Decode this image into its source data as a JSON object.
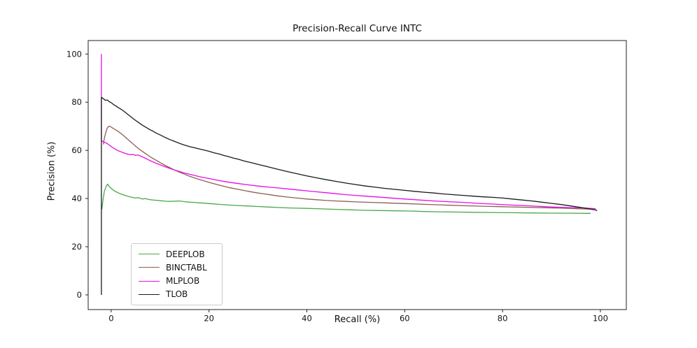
{
  "chart_data": {
    "type": "line",
    "title": "Precision-Recall Curve INTC",
    "xlabel": "Recall (%)",
    "ylabel": "Precision (%)",
    "xlim": [
      -4.7,
      105.3
    ],
    "ylim": [
      -6.1,
      105.6
    ],
    "xticks": [
      0,
      20,
      40,
      60,
      80,
      100
    ],
    "yticks": [
      0,
      20,
      40,
      60,
      80,
      100
    ],
    "grid": false,
    "legend_position": "lower-left",
    "axis_color": "#222222",
    "text_color": "#111111",
    "series": [
      {
        "name": "DEEPLOB",
        "color": "#48a848",
        "points": [
          [
            -1.9,
            35.5
          ],
          [
            -1.7,
            39
          ],
          [
            -1.4,
            43
          ],
          [
            -1.0,
            45.2
          ],
          [
            -0.7,
            46
          ],
          [
            -0.4,
            45
          ],
          [
            0,
            44.2
          ],
          [
            0.4,
            43.6
          ],
          [
            0.8,
            43
          ],
          [
            1.2,
            42.6
          ],
          [
            1.6,
            42.2
          ],
          [
            2,
            41.9
          ],
          [
            2.5,
            41.5
          ],
          [
            3,
            41.2
          ],
          [
            3.5,
            40.9
          ],
          [
            4,
            40.6
          ],
          [
            4.5,
            40.4
          ],
          [
            5,
            40.2
          ],
          [
            5.5,
            40.4
          ],
          [
            6,
            40
          ],
          [
            6.5,
            39.8
          ],
          [
            7,
            40
          ],
          [
            7.5,
            39.7
          ],
          [
            8,
            39.5
          ],
          [
            9,
            39.3
          ],
          [
            10,
            39.1
          ],
          [
            11,
            38.9
          ],
          [
            12,
            38.8
          ],
          [
            13,
            38.9
          ],
          [
            14,
            39
          ],
          [
            15,
            38.7
          ],
          [
            16,
            38.5
          ],
          [
            17,
            38.4
          ],
          [
            18,
            38.2
          ],
          [
            19,
            38.1
          ],
          [
            20,
            37.9
          ],
          [
            22,
            37.6
          ],
          [
            24,
            37.3
          ],
          [
            26,
            37.1
          ],
          [
            28,
            36.9
          ],
          [
            30,
            36.7
          ],
          [
            32,
            36.5
          ],
          [
            34,
            36.3
          ],
          [
            36,
            36.1
          ],
          [
            38,
            36
          ],
          [
            40,
            35.9
          ],
          [
            43,
            35.7
          ],
          [
            46,
            35.5
          ],
          [
            49,
            35.3
          ],
          [
            52,
            35.1
          ],
          [
            55,
            35
          ],
          [
            58,
            34.9
          ],
          [
            61,
            34.8
          ],
          [
            64,
            34.6
          ],
          [
            67,
            34.5
          ],
          [
            70,
            34.4
          ],
          [
            74,
            34.3
          ],
          [
            78,
            34.2
          ],
          [
            82,
            34.1
          ],
          [
            86,
            34
          ],
          [
            90,
            33.95
          ],
          [
            94,
            33.9
          ],
          [
            98,
            33.85
          ]
        ]
      },
      {
        "name": "BINCTABL",
        "color": "#8c5f52",
        "points": [
          [
            -1.6,
            62.5
          ],
          [
            -1.4,
            65
          ],
          [
            -1.1,
            67.5
          ],
          [
            -0.8,
            69.3
          ],
          [
            -0.5,
            70
          ],
          [
            -0.2,
            69.9
          ],
          [
            0.2,
            69.4
          ],
          [
            0.6,
            68.9
          ],
          [
            1,
            68.4
          ],
          [
            1.5,
            67.8
          ],
          [
            2,
            67
          ],
          [
            2.5,
            66.2
          ],
          [
            3,
            65.3
          ],
          [
            3.5,
            64.4
          ],
          [
            4,
            63.5
          ],
          [
            4.5,
            62.6
          ],
          [
            5,
            61.7
          ],
          [
            5.5,
            60.9
          ],
          [
            6,
            60.1
          ],
          [
            6.5,
            59.4
          ],
          [
            7,
            58.7
          ],
          [
            7.5,
            58
          ],
          [
            8,
            57.3
          ],
          [
            9,
            56.1
          ],
          [
            10,
            54.9
          ],
          [
            11,
            53.8
          ],
          [
            12,
            52.8
          ],
          [
            13,
            51.8
          ],
          [
            14,
            50.9
          ],
          [
            15,
            50.1
          ],
          [
            16,
            49.3
          ],
          [
            17,
            48.6
          ],
          [
            18,
            47.9
          ],
          [
            19,
            47.3
          ],
          [
            20,
            46.7
          ],
          [
            22,
            45.6
          ],
          [
            24,
            44.6
          ],
          [
            26,
            43.8
          ],
          [
            28,
            43
          ],
          [
            30,
            42.3
          ],
          [
            32,
            41.7
          ],
          [
            34,
            41.1
          ],
          [
            36,
            40.6
          ],
          [
            38,
            40.2
          ],
          [
            40,
            39.8
          ],
          [
            42,
            39.5
          ],
          [
            44,
            39.2
          ],
          [
            46,
            39
          ],
          [
            48,
            38.8
          ],
          [
            50,
            38.6
          ],
          [
            53,
            38.4
          ],
          [
            56,
            38.2
          ],
          [
            60,
            37.9
          ],
          [
            64,
            37.6
          ],
          [
            68,
            37.3
          ],
          [
            72,
            37
          ],
          [
            76,
            36.8
          ],
          [
            80,
            36.6
          ],
          [
            84,
            36.4
          ],
          [
            88,
            36.2
          ],
          [
            92,
            36
          ],
          [
            95,
            35.8
          ],
          [
            98,
            35.6
          ]
        ]
      },
      {
        "name": "MLPLOB",
        "color": "#e50ee5",
        "points": [
          [
            -2,
            100
          ],
          [
            -2,
            64
          ],
          [
            -1.6,
            63.6
          ],
          [
            -1.2,
            63.2
          ],
          [
            -0.8,
            62.8
          ],
          [
            -0.4,
            62.2
          ],
          [
            0,
            61.6
          ],
          [
            0.5,
            60.9
          ],
          [
            1,
            60.3
          ],
          [
            1.5,
            59.8
          ],
          [
            2,
            59.4
          ],
          [
            2.5,
            59
          ],
          [
            3,
            58.7
          ],
          [
            3.5,
            58.4
          ],
          [
            4,
            58.2
          ],
          [
            4.5,
            58.3
          ],
          [
            5,
            57.9
          ],
          [
            5.5,
            58.1
          ],
          [
            6,
            57.6
          ],
          [
            6.5,
            57.2
          ],
          [
            7,
            56.7
          ],
          [
            7.5,
            56.2
          ],
          [
            8,
            55.7
          ],
          [
            9,
            54.8
          ],
          [
            10,
            54
          ],
          [
            11,
            53.2
          ],
          [
            12,
            52.5
          ],
          [
            13,
            51.8
          ],
          [
            14,
            51.2
          ],
          [
            15,
            50.6
          ],
          [
            16,
            50.1
          ],
          [
            17,
            49.6
          ],
          [
            18,
            49.1
          ],
          [
            19,
            48.7
          ],
          [
            20,
            48.3
          ],
          [
            22,
            47.5
          ],
          [
            24,
            46.8
          ],
          [
            26,
            46.2
          ],
          [
            28,
            45.7
          ],
          [
            30,
            45.2
          ],
          [
            32,
            44.8
          ],
          [
            34,
            44.4
          ],
          [
            36,
            44
          ],
          [
            38,
            43.6
          ],
          [
            40,
            43.2
          ],
          [
            42,
            42.8
          ],
          [
            44,
            42.4
          ],
          [
            46,
            42
          ],
          [
            48,
            41.6
          ],
          [
            50,
            41.3
          ],
          [
            52,
            41
          ],
          [
            54,
            40.7
          ],
          [
            56,
            40.4
          ],
          [
            58,
            40.1
          ],
          [
            60,
            39.8
          ],
          [
            63,
            39.4
          ],
          [
            66,
            39
          ],
          [
            69,
            38.7
          ],
          [
            72,
            38.4
          ],
          [
            75,
            38
          ],
          [
            78,
            37.7
          ],
          [
            81,
            37.4
          ],
          [
            84,
            37.1
          ],
          [
            87,
            36.8
          ],
          [
            90,
            36.5
          ],
          [
            93,
            36.3
          ],
          [
            96,
            36.1
          ],
          [
            98,
            35.9
          ],
          [
            99,
            35.8
          ]
        ]
      },
      {
        "name": "TLOB",
        "color": "#1a1a1a",
        "points": [
          [
            -2,
            0
          ],
          [
            -2,
            82
          ],
          [
            -1.6,
            81.5
          ],
          [
            -1.2,
            80.8
          ],
          [
            -0.8,
            80.9
          ],
          [
            -0.4,
            80.2
          ],
          [
            0,
            79.8
          ],
          [
            0.5,
            79
          ],
          [
            1,
            78.4
          ],
          [
            1.5,
            77.7
          ],
          [
            2,
            77.1
          ],
          [
            2.5,
            76.4
          ],
          [
            3,
            75.6
          ],
          [
            3.5,
            74.8
          ],
          [
            4,
            74
          ],
          [
            4.5,
            73.2
          ],
          [
            5,
            72.4
          ],
          [
            5.5,
            71.7
          ],
          [
            6,
            71
          ],
          [
            6.5,
            70.3
          ],
          [
            7,
            69.7
          ],
          [
            7.5,
            69.1
          ],
          [
            8,
            68.5
          ],
          [
            8.5,
            68
          ],
          [
            9,
            67.4
          ],
          [
            9.5,
            66.9
          ],
          [
            10,
            66.4
          ],
          [
            11,
            65.4
          ],
          [
            12,
            64.5
          ],
          [
            13,
            63.7
          ],
          [
            14,
            62.9
          ],
          [
            15,
            62.2
          ],
          [
            16,
            61.6
          ],
          [
            17,
            61.1
          ],
          [
            18,
            60.6
          ],
          [
            19,
            60.1
          ],
          [
            20,
            59.6
          ],
          [
            21,
            59
          ],
          [
            22,
            58.5
          ],
          [
            23,
            57.9
          ],
          [
            24,
            57.4
          ],
          [
            25,
            56.8
          ],
          [
            26,
            56.3
          ],
          [
            27,
            55.7
          ],
          [
            28,
            55.2
          ],
          [
            29,
            54.7
          ],
          [
            30,
            54.2
          ],
          [
            32,
            53.2
          ],
          [
            34,
            52.2
          ],
          [
            36,
            51.2
          ],
          [
            38,
            50.3
          ],
          [
            40,
            49.4
          ],
          [
            42,
            48.6
          ],
          [
            44,
            47.8
          ],
          [
            46,
            47.1
          ],
          [
            48,
            46.4
          ],
          [
            50,
            45.8
          ],
          [
            52,
            45.2
          ],
          [
            54,
            44.7
          ],
          [
            56,
            44.2
          ],
          [
            58,
            43.8
          ],
          [
            60,
            43.4
          ],
          [
            62,
            43
          ],
          [
            64,
            42.6
          ],
          [
            66,
            42.3
          ],
          [
            68,
            41.9
          ],
          [
            70,
            41.6
          ],
          [
            72,
            41.3
          ],
          [
            74,
            41
          ],
          [
            76,
            40.7
          ],
          [
            78,
            40.5
          ],
          [
            80,
            40.2
          ],
          [
            82,
            39.8
          ],
          [
            84,
            39.4
          ],
          [
            86,
            39
          ],
          [
            88,
            38.5
          ],
          [
            90,
            38
          ],
          [
            92,
            37.5
          ],
          [
            94,
            36.9
          ],
          [
            96,
            36.3
          ],
          [
            97,
            36
          ],
          [
            98,
            35.6
          ],
          [
            99,
            35.3
          ],
          [
            99.3,
            34.9
          ]
        ]
      }
    ]
  }
}
